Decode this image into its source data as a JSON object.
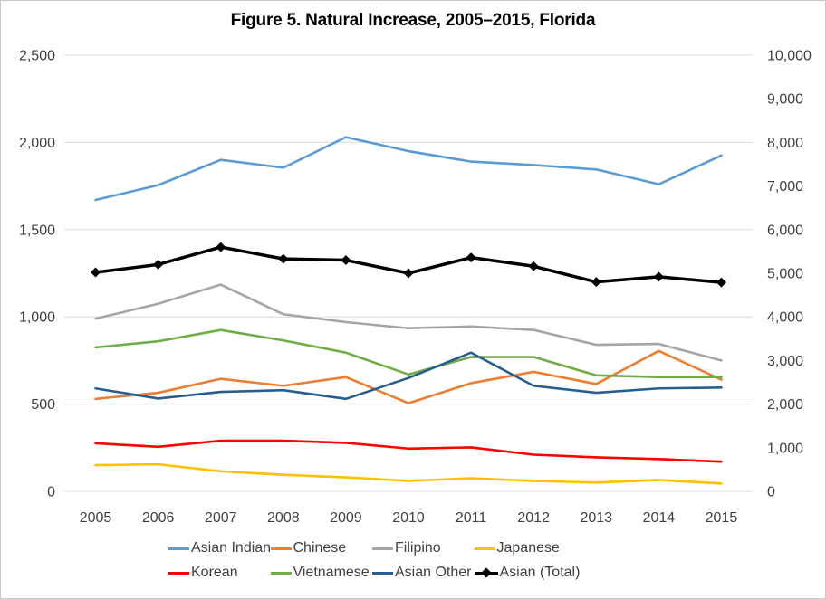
{
  "chart_data": {
    "type": "line",
    "title": "Figure 5. Natural Increase, 2005–2015, Florida",
    "x": [
      "2005",
      "2006",
      "2007",
      "2008",
      "2009",
      "2010",
      "2011",
      "2012",
      "2013",
      "2014",
      "2015"
    ],
    "series": [
      {
        "name": "Asian Indian",
        "color": "#5B9BD5",
        "axis": "left",
        "values": [
          1670,
          1755,
          1900,
          1855,
          2030,
          1950,
          1890,
          1870,
          1845,
          1760,
          1925
        ]
      },
      {
        "name": "Chinese",
        "color": "#ED7D31",
        "axis": "left",
        "values": [
          530,
          565,
          645,
          605,
          655,
          505,
          620,
          685,
          615,
          805,
          640
        ]
      },
      {
        "name": "Filipino",
        "color": "#A5A5A5",
        "axis": "left",
        "values": [
          990,
          1075,
          1185,
          1015,
          970,
          935,
          945,
          925,
          840,
          845,
          750
        ]
      },
      {
        "name": "Japanese",
        "color": "#FFC000",
        "axis": "left",
        "values": [
          150,
          155,
          115,
          95,
          80,
          60,
          75,
          60,
          50,
          65,
          45
        ]
      },
      {
        "name": "Korean",
        "color": "#FF0000",
        "axis": "left",
        "values": [
          275,
          255,
          290,
          290,
          278,
          245,
          252,
          210,
          195,
          185,
          170
        ]
      },
      {
        "name": "Vietnamese",
        "color": "#70AD47",
        "axis": "left",
        "values": [
          825,
          860,
          925,
          865,
          795,
          670,
          770,
          770,
          665,
          655,
          655
        ]
      },
      {
        "name": "Asian Other",
        "color": "#255E91",
        "axis": "left",
        "values": [
          590,
          532,
          570,
          580,
          530,
          650,
          795,
          605,
          565,
          590,
          595
        ]
      },
      {
        "name": "Asian (Total)",
        "color": "#000000",
        "axis": "right",
        "marker": "diamond",
        "values": [
          5020,
          5200,
          5600,
          5330,
          5300,
          5000,
          5360,
          5160,
          4800,
          4920,
          4790
        ]
      }
    ],
    "left_axis": {
      "min": 0,
      "max": 2500,
      "ticks": [
        "0",
        "500",
        "1,000",
        "1,500",
        "2,000",
        "2,500"
      ]
    },
    "right_axis": {
      "min": 0,
      "max": 10000,
      "ticks": [
        "0",
        "1,000",
        "2,000",
        "3,000",
        "4,000",
        "5,000",
        "6,000",
        "7,000",
        "8,000",
        "9,000",
        "10,000"
      ]
    },
    "grid": "horizontal",
    "legend_position": "bottom",
    "legend_rows": [
      [
        "Asian Indian",
        "Chinese",
        "Filipino",
        "Japanese"
      ],
      [
        "Korean",
        "Vietnamese",
        "Asian Other",
        "Asian (Total)"
      ]
    ]
  },
  "style_colors": {
    "gridline": "#D9D9D9",
    "axis_text": "#3F3F3F",
    "border": "#C8C8C8",
    "background": "#FFFFFF"
  }
}
